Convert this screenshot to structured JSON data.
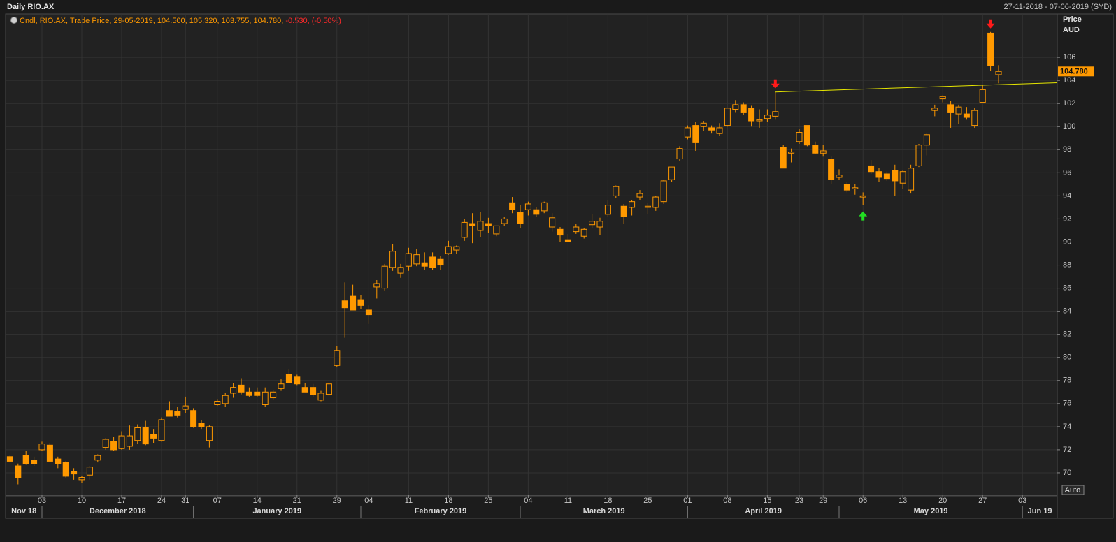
{
  "chart_data": {
    "type": "candlestick",
    "title": "Daily RIO.AX",
    "date_range": "27-11-2018 - 07-06-2019 (SYD)",
    "legend_text": "Cndl, RIO.AX, Trade Price, 29-05-2019, 104.500, 105.320, 103.755, 104.780,",
    "legend_change": "-0.530, (-0.50%)",
    "y_axis_label": "Price",
    "y_axis_unit": "AUD",
    "last_price_label": "104.780",
    "button_label": "Auto",
    "color": "#ff9900",
    "grid": true,
    "ylim": [
      68.06,
      109.76
    ],
    "yticks": [
      70,
      72,
      74,
      76,
      78,
      80,
      82,
      84,
      86,
      88,
      90,
      92,
      94,
      96,
      98,
      100,
      102,
      104,
      106
    ],
    "x_groups": [
      "Nov 18",
      "December 2018",
      "January 2019",
      "February 2019",
      "March 2019",
      "April 2019",
      "May 2019",
      "Jun 19"
    ],
    "categories": [
      null,
      null,
      null,
      null,
      "03",
      null,
      null,
      null,
      null,
      "10",
      null,
      null,
      null,
      null,
      "17",
      null,
      null,
      null,
      null,
      "24",
      null,
      null,
      "31",
      null,
      null,
      null,
      "07",
      null,
      null,
      null,
      null,
      "14",
      null,
      null,
      null,
      null,
      "21",
      null,
      null,
      null,
      null,
      "29",
      null,
      null,
      null,
      "04",
      null,
      null,
      null,
      null,
      "11",
      null,
      null,
      null,
      null,
      "18",
      null,
      null,
      null,
      null,
      "25",
      null,
      null,
      null,
      null,
      "04",
      null,
      null,
      null,
      null,
      "11",
      null,
      null,
      null,
      null,
      "18",
      null,
      null,
      null,
      null,
      "25",
      null,
      null,
      null,
      null,
      "01",
      null,
      null,
      null,
      null,
      "08",
      null,
      null,
      null,
      null,
      "15",
      null,
      null,
      null,
      "23",
      null,
      null,
      "29",
      null,
      null,
      null,
      null,
      "06",
      null,
      null,
      null,
      null,
      "13",
      null,
      null,
      null,
      null,
      "20",
      null,
      null,
      null,
      null,
      "27",
      null,
      null,
      null,
      null,
      "03",
      null,
      null,
      null,
      null
    ],
    "open": [
      71.4,
      70.6,
      71.5,
      71.1,
      72.0,
      72.4,
      71.2,
      70.9,
      70.1,
      69.4,
      69.8,
      71.1,
      72.2,
      72.7,
      72.1,
      72.3,
      72.8,
      73.9,
      73.3,
      72.8,
      75.4,
      75.3,
      75.5,
      75.4,
      74.3,
      72.8,
      75.9,
      76.0,
      76.9,
      77.6,
      77.0,
      77.0,
      75.9,
      76.5,
      77.3,
      78.5,
      78.3,
      77.4,
      77.4,
      76.3,
      76.8,
      79.3,
      84.9,
      85.3,
      85.0,
      84.1,
      86.1,
      86.0,
      87.8,
      87.3,
      87.9,
      88.1,
      88.2,
      88.7,
      88.5,
      89.0,
      89.3,
      90.4,
      91.6,
      91.0,
      91.6,
      90.7,
      91.6,
      93.4,
      92.6,
      92.8,
      92.8,
      92.7,
      91.3,
      91.1,
      90.2,
      90.9,
      90.5,
      91.5,
      91.3,
      92.4,
      94.0,
      93.1,
      93.0,
      93.9,
      93.0,
      93.0,
      93.5,
      95.4,
      97.2,
      99.1,
      100.1,
      100.0,
      99.9,
      99.4,
      100.1,
      101.5,
      101.9,
      101.6,
      100.5,
      100.7,
      100.9,
      98.2,
      97.7,
      98.7,
      100.1,
      98.4,
      97.7,
      97.2,
      95.6,
      95.0,
      94.6,
      93.9,
      96.6,
      96.1,
      95.9,
      96.2,
      95.1,
      94.5,
      96.6,
      98.4,
      101.4,
      102.4,
      101.9,
      101.1,
      101.1,
      100.1,
      102.1,
      108.1,
      104.5,
      null,
      null,
      null,
      null,
      null,
      null,
      null
    ],
    "high": [
      71.5,
      70.8,
      71.9,
      71.4,
      72.7,
      72.6,
      71.4,
      71.0,
      70.4,
      69.7,
      70.6,
      71.6,
      73.0,
      73.1,
      73.6,
      74.1,
      74.2,
      74.5,
      73.8,
      74.8,
      76.2,
      75.7,
      76.6,
      75.6,
      74.6,
      74.1,
      76.4,
      76.9,
      77.8,
      78.2,
      77.4,
      77.4,
      77.4,
      77.2,
      78.1,
      79.0,
      78.5,
      77.8,
      77.7,
      77.1,
      77.8,
      81.0,
      86.5,
      86.3,
      85.4,
      84.5,
      86.7,
      88.1,
      89.8,
      88.1,
      89.5,
      89.4,
      89.1,
      89.1,
      88.8,
      90.1,
      89.7,
      92.0,
      92.5,
      92.6,
      92.1,
      91.4,
      92.2,
      93.9,
      93.2,
      93.5,
      93.0,
      93.5,
      92.5,
      91.3,
      90.7,
      91.6,
      91.2,
      92.4,
      92.1,
      93.6,
      94.9,
      93.3,
      93.6,
      94.5,
      93.4,
      94.0,
      95.4,
      96.5,
      98.3,
      100.1,
      100.4,
      100.5,
      100.1,
      100.3,
      101.6,
      102.3,
      102.1,
      101.8,
      101.5,
      101.5,
      103.0,
      98.4,
      98.1,
      99.8,
      100.1,
      98.7,
      98.4,
      97.4,
      96.3,
      95.2,
      95.0,
      94.3,
      97.1,
      96.4,
      96.1,
      96.7,
      96.2,
      96.7,
      98.5,
      99.4,
      101.9,
      102.7,
      102.2,
      101.9,
      101.7,
      101.6,
      103.6,
      108.2,
      105.32,
      null,
      null,
      null,
      null,
      null,
      null,
      null
    ],
    "low": [
      70.9,
      69.0,
      70.7,
      70.6,
      71.9,
      71.0,
      70.4,
      69.6,
      69.4,
      69.1,
      69.4,
      70.9,
      72.0,
      71.9,
      72.0,
      72.0,
      72.5,
      72.4,
      72.6,
      72.7,
      74.9,
      74.8,
      75.2,
      73.9,
      73.8,
      72.2,
      75.8,
      75.7,
      76.5,
      76.8,
      76.6,
      76.6,
      75.7,
      76.3,
      77.1,
      77.8,
      77.6,
      77.0,
      76.6,
      76.2,
      76.7,
      79.2,
      81.7,
      84.1,
      84.2,
      82.9,
      85.1,
      85.8,
      87.5,
      86.9,
      87.5,
      87.9,
      87.6,
      87.6,
      87.6,
      88.9,
      89.0,
      90.1,
      89.9,
      90.4,
      90.8,
      90.5,
      91.4,
      92.5,
      91.2,
      92.3,
      92.2,
      92.5,
      90.9,
      90.0,
      90.0,
      90.7,
      90.3,
      91.2,
      90.6,
      92.2,
      93.8,
      91.6,
      92.3,
      93.6,
      92.4,
      92.7,
      93.3,
      95.2,
      97.0,
      98.9,
      97.9,
      99.6,
      99.4,
      99.2,
      100.0,
      101.2,
      101.0,
      100.0,
      99.9,
      100.4,
      100.6,
      96.4,
      96.9,
      98.5,
      98.3,
      97.6,
      97.4,
      95.0,
      95.4,
      94.3,
      94.1,
      93.2,
      95.9,
      95.2,
      95.3,
      94.0,
      94.6,
      94.2,
      96.5,
      97.5,
      100.9,
      102.1,
      99.9,
      100.2,
      100.6,
      99.9,
      102.1,
      104.8,
      103.755,
      null,
      null,
      null,
      null,
      null,
      null,
      null
    ],
    "close": [
      71.0,
      69.6,
      70.8,
      70.8,
      72.5,
      71.0,
      70.8,
      69.7,
      69.9,
      69.6,
      70.5,
      71.5,
      72.9,
      72.0,
      73.2,
      73.2,
      73.9,
      72.5,
      73.0,
      74.6,
      74.9,
      75.0,
      75.8,
      74.0,
      74.0,
      74.0,
      76.2,
      76.7,
      77.4,
      77.0,
      76.7,
      76.7,
      77.0,
      77.0,
      77.7,
      77.8,
      77.7,
      77.0,
      76.8,
      76.9,
      77.7,
      80.6,
      84.3,
      84.1,
      84.5,
      83.7,
      86.4,
      87.9,
      89.2,
      87.8,
      89.0,
      88.9,
      87.9,
      87.8,
      88.0,
      89.6,
      89.6,
      91.7,
      91.4,
      91.8,
      91.4,
      91.4,
      92.0,
      92.8,
      91.6,
      93.3,
      92.4,
      93.4,
      92.1,
      90.6,
      90.0,
      91.3,
      91.1,
      91.8,
      91.8,
      93.2,
      94.8,
      92.2,
      93.5,
      94.2,
      93.1,
      93.9,
      95.3,
      96.5,
      98.1,
      99.9,
      98.6,
      100.3,
      99.7,
      99.9,
      101.6,
      101.9,
      101.2,
      100.5,
      100.6,
      101.0,
      101.3,
      96.4,
      97.8,
      99.5,
      98.4,
      97.7,
      97.9,
      95.4,
      95.8,
      94.5,
      94.7,
      94.0,
      96.1,
      95.6,
      95.5,
      95.3,
      96.1,
      96.4,
      98.4,
      99.3,
      101.6,
      102.6,
      101.2,
      101.7,
      100.8,
      101.4,
      103.2,
      105.3,
      104.78,
      null,
      null,
      null,
      null,
      null,
      null,
      null
    ],
    "trendline": {
      "color": "#e6e600",
      "x": [
        96,
        132
      ],
      "y": [
        103.0,
        103.8
      ]
    },
    "arrows": [
      {
        "at": 96,
        "direction": "down",
        "color": "#ff1a1a"
      },
      {
        "at": 107,
        "direction": "up",
        "color": "#22dd22"
      },
      {
        "at": 123,
        "direction": "down",
        "color": "#ff1a1a"
      }
    ]
  }
}
